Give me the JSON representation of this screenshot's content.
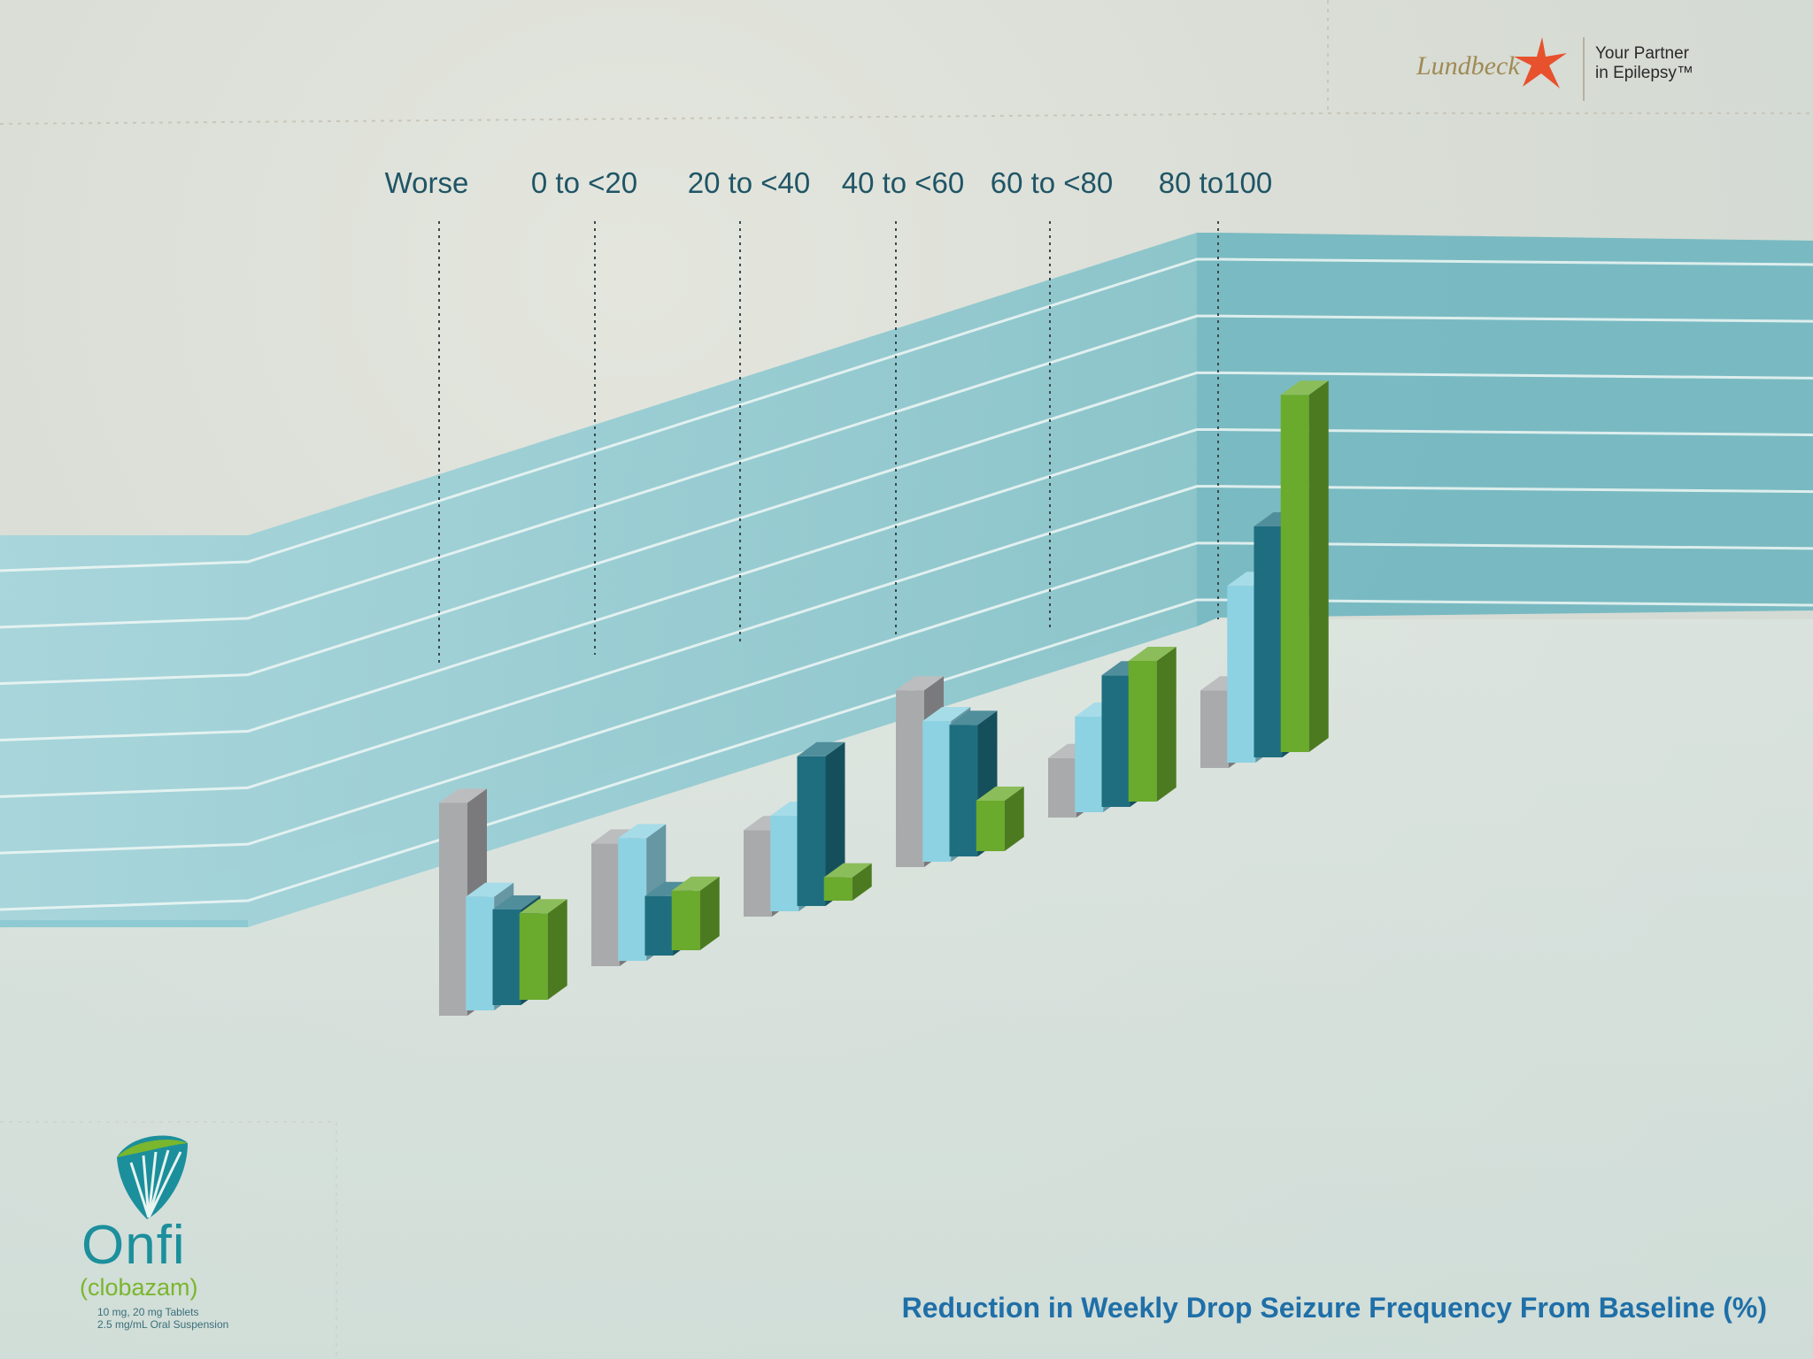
{
  "brand": {
    "company": "Lundbeck",
    "tagline_line1": "Your Partner",
    "tagline_line2": "in Epilepsy™"
  },
  "product": {
    "name": "Onfi",
    "generic": "(clobazam)",
    "dose_line1": "10 mg, 20 mg Tablets",
    "dose_line2": "2.5 mg/mL Oral Suspension"
  },
  "chart_data": {
    "type": "bar",
    "title": "",
    "xlabel": "Reduction in Weekly Drop Seizure Frequency From Baseline (%)",
    "ylabel": "",
    "categories": [
      "Worse",
      "0 to <20",
      "20 to <40",
      "40 to <60",
      "60 to <80",
      "80 to100"
    ],
    "series": [
      {
        "values": [
          23,
          13,
          9,
          19,
          6,
          8
        ]
      },
      {
        "values": [
          12,
          13,
          10,
          15,
          10,
          19
        ]
      },
      {
        "values": [
          10,
          6,
          16,
          14,
          14,
          25
        ]
      },
      {
        "values": [
          9,
          6,
          2,
          5,
          15,
          39
        ]
      }
    ],
    "series_colors": [
      "#a9aaac",
      "#8dd2e2",
      "#1e6e80",
      "#6aaa2c"
    ],
    "ylim": [
      0,
      40
    ],
    "grid": true,
    "legend": "none"
  }
}
